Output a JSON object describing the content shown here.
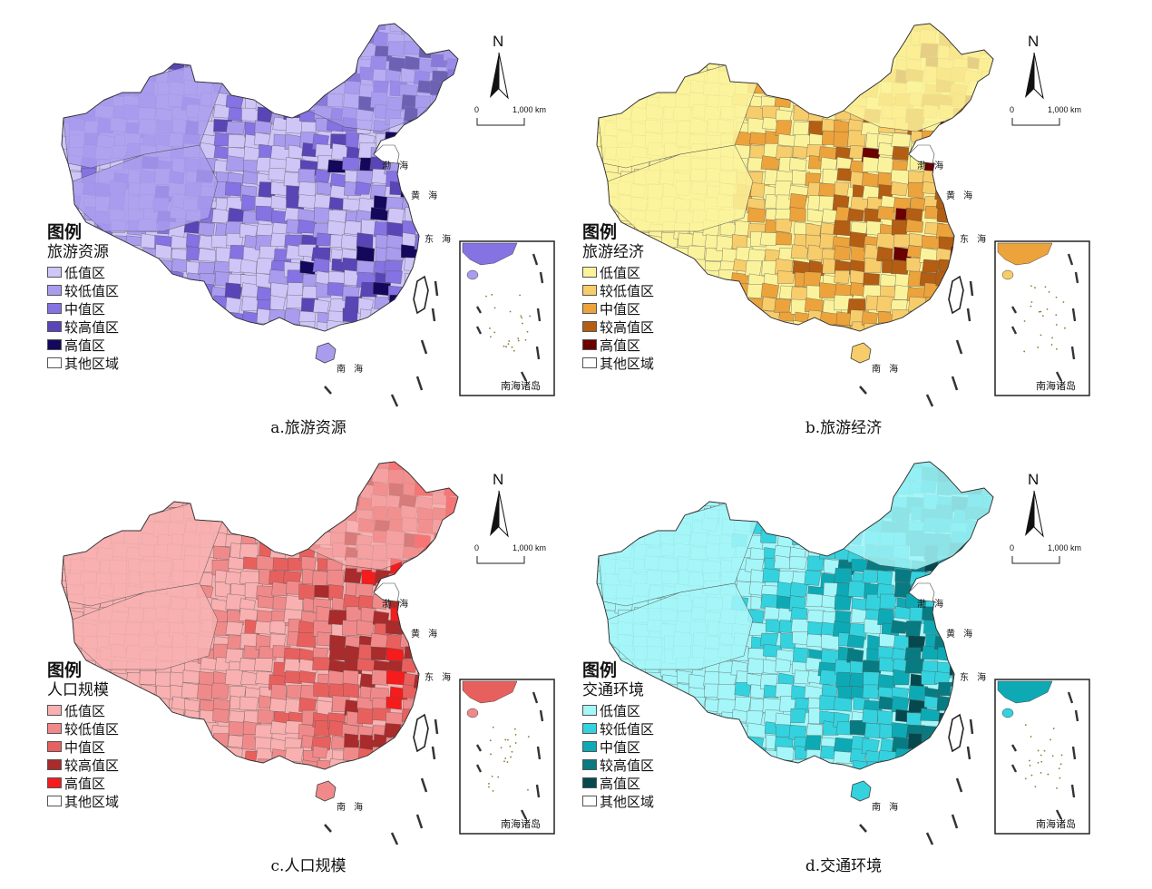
{
  "panels": [
    {
      "id": "a",
      "caption": "a.旅游资源",
      "legend_title": "图例",
      "legend_subtitle": "旅游资源",
      "classes": [
        "低值区",
        "较低值区",
        "中值区",
        "较高值区",
        "高值区",
        "其他区域"
      ],
      "colors": [
        "#cfc6f7",
        "#a99cee",
        "#8572e3",
        "#5a45b7",
        "#14085c",
        "#ffffff"
      ]
    },
    {
      "id": "b",
      "caption": "b.旅游经济",
      "legend_title": "图例",
      "legend_subtitle": "旅游经济",
      "classes": [
        "低值区",
        "较低值区",
        "中值区",
        "较高值区",
        "高值区",
        "其他区域"
      ],
      "colors": [
        "#fbf39c",
        "#f7cc6a",
        "#eca33b",
        "#b35e13",
        "#6a0000",
        "#ffffff"
      ]
    },
    {
      "id": "c",
      "caption": "c.人口规模",
      "legend_title": "图例",
      "legend_subtitle": "人口规模",
      "classes": [
        "低值区",
        "较低值区",
        "中值区",
        "较高值区",
        "高值区",
        "其他区域"
      ],
      "colors": [
        "#f8b0b0",
        "#f08a8a",
        "#e8605e",
        "#a92b2b",
        "#f41c1c",
        "#ffffff"
      ]
    },
    {
      "id": "d",
      "caption": "d.交通环境",
      "legend_title": "图例",
      "legend_subtitle": "交通环境",
      "classes": [
        "低值区",
        "较低值区",
        "中值区",
        "较高值区",
        "高值区",
        "其他区域"
      ],
      "colors": [
        "#a5f6f8",
        "#33d2de",
        "#0daab5",
        "#087b82",
        "#05494f",
        "#ffffff"
      ]
    }
  ],
  "seas": {
    "bohai": "渤 海",
    "huanghai": "黄 海",
    "donghai": "东 海",
    "nanhai": "南 海"
  },
  "inset_label": "南海诸岛",
  "north_label": "N",
  "scale": {
    "zero": "0",
    "distance": "1,000",
    "unit": "km"
  }
}
